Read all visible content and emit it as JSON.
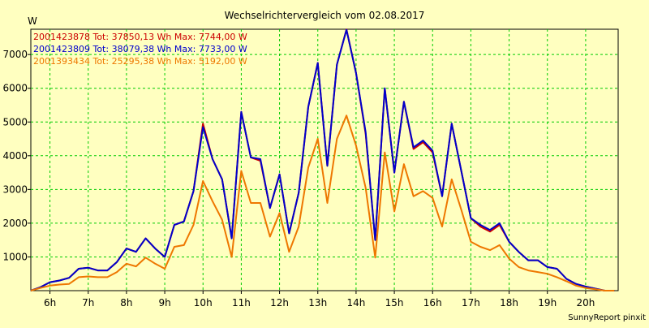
{
  "chart_data": {
    "type": "line",
    "title": "Wechselrichtervergleich vom 02.08.2017",
    "ylabel": "W",
    "xlabel": "",
    "footer": "SunnyReport pinxit",
    "ylim": [
      0,
      7750
    ],
    "xlim": [
      5.5,
      20.85
    ],
    "grid": true,
    "y_ticks": [
      1000,
      2000,
      3000,
      4000,
      5000,
      6000,
      7000
    ],
    "x_ticks": [
      {
        "value": 6,
        "label": "6h"
      },
      {
        "value": 7,
        "label": "7h"
      },
      {
        "value": 8,
        "label": "8h"
      },
      {
        "value": 9,
        "label": "9h"
      },
      {
        "value": 10,
        "label": "10h"
      },
      {
        "value": 11,
        "label": "11h"
      },
      {
        "value": 12,
        "label": "12h"
      },
      {
        "value": 13,
        "label": "13h"
      },
      {
        "value": 14,
        "label": "14h"
      },
      {
        "value": 15,
        "label": "15h"
      },
      {
        "value": 16,
        "label": "16h"
      },
      {
        "value": 17,
        "label": "17h"
      },
      {
        "value": 18,
        "label": "18h"
      },
      {
        "value": 19,
        "label": "19h"
      },
      {
        "value": 20,
        "label": "20h"
      }
    ],
    "legend_position": "top-left",
    "x": [
      5.5,
      5.75,
      6.0,
      6.25,
      6.5,
      6.75,
      7.0,
      7.25,
      7.5,
      7.75,
      8.0,
      8.25,
      8.5,
      8.75,
      9.0,
      9.25,
      9.5,
      9.75,
      10.0,
      10.25,
      10.5,
      10.75,
      11.0,
      11.25,
      11.5,
      11.75,
      12.0,
      12.25,
      12.5,
      12.75,
      13.0,
      13.25,
      13.5,
      13.75,
      14.0,
      14.25,
      14.5,
      14.75,
      15.0,
      15.25,
      15.5,
      15.75,
      16.0,
      16.25,
      16.5,
      16.75,
      17.0,
      17.25,
      17.5,
      17.75,
      18.0,
      18.25,
      18.5,
      18.75,
      19.0,
      19.25,
      19.5,
      19.75,
      20.0,
      20.25,
      20.5,
      20.75
    ],
    "series": [
      {
        "name": "2001423878",
        "legend": "2001423878 Tot: 37850,13 Wh Max: 7744,00 W",
        "color": "#cc0000",
        "values": [
          0,
          100,
          250,
          300,
          380,
          650,
          680,
          600,
          600,
          850,
          1250,
          1150,
          1550,
          1250,
          1000,
          1950,
          2050,
          2950,
          4950,
          3900,
          3300,
          1550,
          5300,
          3950,
          3850,
          2450,
          3450,
          1700,
          2900,
          5450,
          6750,
          3700,
          6700,
          7744,
          6450,
          4650,
          1500,
          6000,
          3500,
          5600,
          4200,
          4400,
          4100,
          2800,
          4950,
          3550,
          2150,
          1900,
          1750,
          1950,
          1450,
          1150,
          900,
          900,
          700,
          650,
          350,
          200,
          120,
          60,
          0,
          0
        ]
      },
      {
        "name": "2001423809",
        "legend": "2001423809 Tot: 38079,38 Wh Max: 7733,00 W",
        "color": "#0000cc",
        "values": [
          0,
          100,
          250,
          300,
          380,
          650,
          680,
          600,
          600,
          850,
          1250,
          1150,
          1550,
          1250,
          1000,
          1950,
          2050,
          2950,
          4850,
          3900,
          3300,
          1550,
          5300,
          3950,
          3900,
          2450,
          3450,
          1700,
          2900,
          5450,
          6750,
          3700,
          6700,
          7733,
          6450,
          4700,
          1500,
          6000,
          3500,
          5600,
          4250,
          4450,
          4150,
          2800,
          4950,
          3550,
          2150,
          1950,
          1800,
          2000,
          1450,
          1150,
          900,
          900,
          700,
          650,
          350,
          200,
          120,
          60,
          0,
          0
        ]
      },
      {
        "name": "2001393434",
        "legend": "2001393434 Tot: 25295,38 Wh Max: 5192,00 W",
        "color": "#ee7700",
        "values": [
          0,
          80,
          150,
          180,
          200,
          400,
          420,
          400,
          400,
          550,
          800,
          720,
          980,
          800,
          650,
          1300,
          1350,
          1950,
          3250,
          2650,
          2100,
          1000,
          3550,
          2600,
          2600,
          1600,
          2300,
          1150,
          1900,
          3650,
          4500,
          2600,
          4500,
          5192,
          4300,
          3050,
          980,
          4100,
          2350,
          3750,
          2800,
          2950,
          2750,
          1900,
          3300,
          2400,
          1450,
          1300,
          1200,
          1350,
          950,
          700,
          600,
          550,
          500,
          400,
          280,
          150,
          80,
          40,
          0,
          0
        ]
      }
    ]
  }
}
